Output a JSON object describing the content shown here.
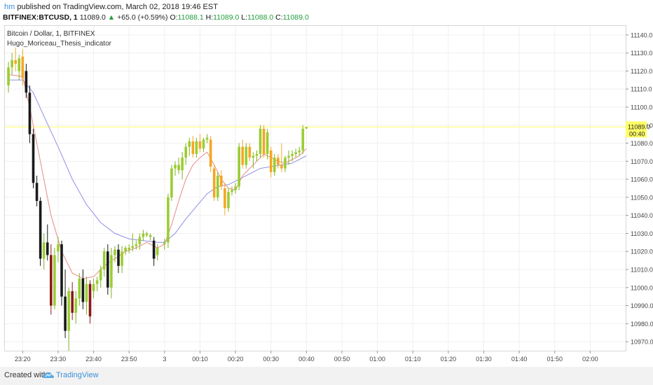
{
  "header": {
    "user": "hm",
    "published_text": "published on TradingView.com, March 02, 2018 19:46 EST",
    "symbol": "BITFINEX:BTCUSD, 1",
    "last": "11089.0",
    "change": "+65.0 (+0.59%)",
    "o_label": "O:",
    "o_value": "11088.1",
    "h_label": "H:",
    "h_value": "11089.0",
    "l_label": "L:",
    "l_value": "11088.0",
    "c_label": "C:",
    "c_value": "11089.0"
  },
  "legend": {
    "series_title": "Bitcoin / Dollar, 1, BITFINEX",
    "indicator": "Hugo_Moriceau_Thesis_indicator"
  },
  "price_label": {
    "value": "11089.0",
    "countdown": "00:40"
  },
  "footer": {
    "created": "Created with",
    "brand": "TradingView"
  },
  "colors": {
    "up": "#9acd32",
    "up_strong": "#66c21f",
    "down": "#1a1a1a",
    "down_red": "#8b1a1a",
    "orange": "#f5a623",
    "ma_fast": "#e88a8a",
    "ma_slow": "#8f8fe8",
    "last_line": "#ffff66"
  },
  "chart_data": {
    "type": "candlestick",
    "title": "Bitcoin / Dollar, 1, BITFINEX",
    "ylim": [
      10965,
      11145
    ],
    "y_ticks": [
      10970,
      10980,
      10990,
      11000,
      11010,
      11020,
      11030,
      11040,
      11050,
      11060,
      11070,
      11080,
      11090,
      11100,
      11110,
      11120,
      11130,
      11140
    ],
    "x_ticks": [
      "23:20",
      "23:30",
      "23:40",
      "23:50",
      "3",
      "00:10",
      "00:20",
      "00:30",
      "00:40",
      "00:50",
      "01:00",
      "01:10",
      "01:20",
      "01:30",
      "01:40",
      "01:50",
      "02:00"
    ],
    "x_range_minutes": [
      -45,
      130
    ],
    "last_price": 11089.0,
    "candles": [
      {
        "t": -44,
        "o": 11112,
        "h": 11125,
        "l": 11108,
        "c": 11122,
        "col": "up"
      },
      {
        "t": -43,
        "o": 11122,
        "h": 11130,
        "l": 11118,
        "c": 11126,
        "col": "up"
      },
      {
        "t": -42,
        "o": 11126,
        "h": 11133,
        "l": 11120,
        "c": 11124,
        "col": "orange"
      },
      {
        "t": -41,
        "o": 11120,
        "h": 11129,
        "l": 11115,
        "c": 11127,
        "col": "up"
      },
      {
        "t": -40,
        "o": 11128,
        "h": 11132,
        "l": 11112,
        "c": 11116,
        "col": "orange"
      },
      {
        "t": -39,
        "o": 11120,
        "h": 11124,
        "l": 11105,
        "c": 11108,
        "col": "down"
      },
      {
        "t": -38,
        "o": 11108,
        "h": 11112,
        "l": 11080,
        "c": 11085,
        "col": "down"
      },
      {
        "t": -37,
        "o": 11085,
        "h": 11088,
        "l": 11055,
        "c": 11058,
        "col": "down"
      },
      {
        "t": -36,
        "o": 11058,
        "h": 11062,
        "l": 11045,
        "c": 11048,
        "col": "down"
      },
      {
        "t": -35,
        "o": 11048,
        "h": 11050,
        "l": 11012,
        "c": 11016,
        "col": "down"
      },
      {
        "t": -34,
        "o": 11016,
        "h": 11030,
        "l": 11010,
        "c": 11025,
        "col": "up"
      },
      {
        "t": -33,
        "o": 11025,
        "h": 11035,
        "l": 11015,
        "c": 11018,
        "col": "down"
      },
      {
        "t": -32,
        "o": 11018,
        "h": 11024,
        "l": 10985,
        "c": 10990,
        "col": "down_red"
      },
      {
        "t": -31,
        "o": 10990,
        "h": 11022,
        "l": 10988,
        "c": 11018,
        "col": "up"
      },
      {
        "t": -30,
        "o": 11020,
        "h": 11028,
        "l": 11014,
        "c": 11024,
        "col": "up"
      },
      {
        "t": -29,
        "o": 11024,
        "h": 11026,
        "l": 10990,
        "c": 10995,
        "col": "down"
      },
      {
        "t": -28,
        "o": 10995,
        "h": 11010,
        "l": 10972,
        "c": 10976,
        "col": "down"
      },
      {
        "t": -27,
        "o": 10976,
        "h": 11000,
        "l": 10965,
        "c": 10998,
        "col": "up"
      },
      {
        "t": -26,
        "o": 10998,
        "h": 11003,
        "l": 10982,
        "c": 10986,
        "col": "down_red"
      },
      {
        "t": -25,
        "o": 10986,
        "h": 10998,
        "l": 10980,
        "c": 10994,
        "col": "up"
      },
      {
        "t": -24,
        "o": 10994,
        "h": 11008,
        "l": 10990,
        "c": 11005,
        "col": "up"
      },
      {
        "t": -23,
        "o": 11005,
        "h": 11010,
        "l": 10988,
        "c": 10992,
        "col": "down"
      },
      {
        "t": -22,
        "o": 10992,
        "h": 11006,
        "l": 10985,
        "c": 11002,
        "col": "up"
      },
      {
        "t": -21,
        "o": 11002,
        "h": 11004,
        "l": 10980,
        "c": 10984,
        "col": "down_red"
      },
      {
        "t": -20,
        "o": 10998,
        "h": 11005,
        "l": 10994,
        "c": 11002,
        "col": "up"
      },
      {
        "t": -19,
        "o": 11002,
        "h": 11006,
        "l": 10998,
        "c": 11004,
        "col": "up"
      },
      {
        "t": -18,
        "o": 11004,
        "h": 11012,
        "l": 11000,
        "c": 11010,
        "col": "up"
      },
      {
        "t": -17,
        "o": 11010,
        "h": 11022,
        "l": 11006,
        "c": 11020,
        "col": "up"
      },
      {
        "t": -16,
        "o": 11020,
        "h": 11024,
        "l": 10996,
        "c": 11000,
        "col": "down"
      },
      {
        "t": -15,
        "o": 11000,
        "h": 11022,
        "l": 10994,
        "c": 11018,
        "col": "up"
      },
      {
        "t": -14,
        "o": 11018,
        "h": 11023,
        "l": 11014,
        "c": 11021,
        "col": "up"
      },
      {
        "t": -13,
        "o": 11021,
        "h": 11024,
        "l": 11008,
        "c": 11012,
        "col": "down"
      },
      {
        "t": -12,
        "o": 11012,
        "h": 11023,
        "l": 11008,
        "c": 11020,
        "col": "up"
      },
      {
        "t": -11,
        "o": 11020,
        "h": 11023,
        "l": 11018,
        "c": 11022,
        "col": "up"
      },
      {
        "t": -10,
        "o": 11021,
        "h": 11024,
        "l": 11019,
        "c": 11022,
        "col": "up"
      },
      {
        "t": -9,
        "o": 11022,
        "h": 11030,
        "l": 11020,
        "c": 11023,
        "col": "up"
      },
      {
        "t": -8,
        "o": 11023,
        "h": 11026,
        "l": 11021,
        "c": 11024,
        "col": "up"
      },
      {
        "t": -7,
        "o": 11024,
        "h": 11030,
        "l": 11021,
        "c": 11028,
        "col": "up"
      },
      {
        "t": -6,
        "o": 11028,
        "h": 11032,
        "l": 11026,
        "c": 11030,
        "col": "up"
      },
      {
        "t": -5,
        "o": 11030,
        "h": 11031,
        "l": 11028,
        "c": 11029,
        "col": "up"
      },
      {
        "t": -4,
        "o": 11029,
        "h": 11030,
        "l": 11026,
        "c": 11028,
        "col": "up"
      },
      {
        "t": -3,
        "o": 11026,
        "h": 11028,
        "l": 11012,
        "c": 11016,
        "col": "down"
      },
      {
        "t": -2,
        "o": 11018,
        "h": 11024,
        "l": 11015,
        "c": 11022,
        "col": "up"
      },
      {
        "t": 0,
        "o": 11024,
        "h": 11027,
        "l": 11021,
        "c": 11025,
        "col": "up"
      },
      {
        "t": 1,
        "o": 11025,
        "h": 11052,
        "l": 11022,
        "c": 11050,
        "col": "up"
      },
      {
        "t": 2,
        "o": 11050,
        "h": 11068,
        "l": 11048,
        "c": 11066,
        "col": "up"
      },
      {
        "t": 3,
        "o": 11066,
        "h": 11070,
        "l": 11062,
        "c": 11068,
        "col": "up"
      },
      {
        "t": 4,
        "o": 11068,
        "h": 11072,
        "l": 11063,
        "c": 11065,
        "col": "up"
      },
      {
        "t": 5,
        "o": 11065,
        "h": 11075,
        "l": 11060,
        "c": 11072,
        "col": "up"
      },
      {
        "t": 6,
        "o": 11072,
        "h": 11080,
        "l": 11068,
        "c": 11078,
        "col": "up"
      },
      {
        "t": 7,
        "o": 11078,
        "h": 11083,
        "l": 11073,
        "c": 11081,
        "col": "up"
      },
      {
        "t": 8,
        "o": 11081,
        "h": 11084,
        "l": 11072,
        "c": 11074,
        "col": "orange"
      },
      {
        "t": 9,
        "o": 11074,
        "h": 11083,
        "l": 11072,
        "c": 11081,
        "col": "up"
      },
      {
        "t": 10,
        "o": 11081,
        "h": 11085,
        "l": 11075,
        "c": 11077,
        "col": "orange"
      },
      {
        "t": 11,
        "o": 11077,
        "h": 11083,
        "l": 11075,
        "c": 11082,
        "col": "up"
      },
      {
        "t": 12,
        "o": 11083,
        "h": 11085,
        "l": 11080,
        "c": 11082,
        "col": "up"
      },
      {
        "t": 13,
        "o": 11082,
        "h": 11084,
        "l": 11064,
        "c": 11067,
        "col": "orange"
      },
      {
        "t": 14,
        "o": 11066,
        "h": 11068,
        "l": 11048,
        "c": 11050,
        "col": "orange"
      },
      {
        "t": 15,
        "o": 11050,
        "h": 11064,
        "l": 11048,
        "c": 11062,
        "col": "up"
      },
      {
        "t": 16,
        "o": 11062,
        "h": 11065,
        "l": 11054,
        "c": 11056,
        "col": "orange"
      },
      {
        "t": 17,
        "o": 11055,
        "h": 11058,
        "l": 11040,
        "c": 11044,
        "col": "orange"
      },
      {
        "t": 18,
        "o": 11044,
        "h": 11055,
        "l": 11042,
        "c": 11053,
        "col": "up"
      },
      {
        "t": 19,
        "o": 11053,
        "h": 11056,
        "l": 11051,
        "c": 11054,
        "col": "up"
      },
      {
        "t": 20,
        "o": 11054,
        "h": 11058,
        "l": 11052,
        "c": 11056,
        "col": "up"
      },
      {
        "t": 21,
        "o": 11056,
        "h": 11080,
        "l": 11054,
        "c": 11078,
        "col": "up"
      },
      {
        "t": 22,
        "o": 11078,
        "h": 11082,
        "l": 11066,
        "c": 11068,
        "col": "orange"
      },
      {
        "t": 23,
        "o": 11068,
        "h": 11080,
        "l": 11066,
        "c": 11078,
        "col": "up"
      },
      {
        "t": 24,
        "o": 11078,
        "h": 11080,
        "l": 11070,
        "c": 11072,
        "col": "orange"
      },
      {
        "t": 25,
        "o": 11072,
        "h": 11075,
        "l": 11066,
        "c": 11073,
        "col": "up"
      },
      {
        "t": 26,
        "o": 11073,
        "h": 11076,
        "l": 11070,
        "c": 11074,
        "col": "up"
      },
      {
        "t": 27,
        "o": 11074,
        "h": 11090,
        "l": 11072,
        "c": 11088,
        "col": "up"
      },
      {
        "t": 28,
        "o": 11088,
        "h": 11090,
        "l": 11072,
        "c": 11074,
        "col": "orange"
      },
      {
        "t": 29,
        "o": 11074,
        "h": 11088,
        "l": 11071,
        "c": 11086,
        "col": "up"
      },
      {
        "t": 30,
        "o": 11076,
        "h": 11078,
        "l": 11061,
        "c": 11064,
        "col": "orange"
      },
      {
        "t": 31,
        "o": 11064,
        "h": 11074,
        "l": 11062,
        "c": 11072,
        "col": "up"
      },
      {
        "t": 32,
        "o": 11072,
        "h": 11074,
        "l": 11066,
        "c": 11068,
        "col": "orange"
      },
      {
        "t": 33,
        "o": 11068,
        "h": 11080,
        "l": 11064,
        "c": 11066,
        "col": "orange"
      },
      {
        "t": 34,
        "o": 11066,
        "h": 11073,
        "l": 11064,
        "c": 11072,
        "col": "up"
      },
      {
        "t": 35,
        "o": 11072,
        "h": 11076,
        "l": 11068,
        "c": 11073,
        "col": "up"
      },
      {
        "t": 36,
        "o": 11073,
        "h": 11076,
        "l": 11070,
        "c": 11074,
        "col": "up"
      },
      {
        "t": 37,
        "o": 11074,
        "h": 11077,
        "l": 11072,
        "c": 11075,
        "col": "up"
      },
      {
        "t": 38,
        "o": 11075,
        "h": 11078,
        "l": 11073,
        "c": 11076,
        "col": "up"
      },
      {
        "t": 39,
        "o": 11076,
        "h": 11090,
        "l": 11074,
        "c": 11088,
        "col": "up"
      },
      {
        "t": 40,
        "o": 11088.1,
        "h": 11089,
        "l": 11088,
        "c": 11089,
        "col": "up"
      }
    ],
    "ma_fast": [
      [
        -44,
        11118
      ],
      [
        -40,
        11117
      ],
      [
        -38,
        11100
      ],
      [
        -35,
        11070
      ],
      [
        -32,
        11040
      ],
      [
        -29,
        11020
      ],
      [
        -26,
        11008
      ],
      [
        -23,
        11005
      ],
      [
        -20,
        11006
      ],
      [
        -17,
        11012
      ],
      [
        -14,
        11016
      ],
      [
        -11,
        11020
      ],
      [
        -8,
        11022
      ],
      [
        -5,
        11025
      ],
      [
        -2,
        11022
      ],
      [
        0,
        11024
      ],
      [
        2,
        11035
      ],
      [
        4,
        11048
      ],
      [
        6,
        11060
      ],
      [
        8,
        11068
      ],
      [
        10,
        11072
      ],
      [
        12,
        11075
      ],
      [
        14,
        11068
      ],
      [
        16,
        11060
      ],
      [
        18,
        11055
      ],
      [
        20,
        11054
      ],
      [
        22,
        11062
      ],
      [
        24,
        11066
      ],
      [
        26,
        11070
      ],
      [
        28,
        11074
      ],
      [
        30,
        11072
      ],
      [
        32,
        11070
      ],
      [
        34,
        11069
      ],
      [
        36,
        11071
      ],
      [
        38,
        11073
      ],
      [
        40,
        11077
      ]
    ],
    "ma_slow": [
      [
        -44,
        11115
      ],
      [
        -40,
        11115
      ],
      [
        -37,
        11108
      ],
      [
        -34,
        11095
      ],
      [
        -30,
        11078
      ],
      [
        -26,
        11060
      ],
      [
        -22,
        11046
      ],
      [
        -18,
        11036
      ],
      [
        -14,
        11030
      ],
      [
        -10,
        11027
      ],
      [
        -6,
        11026
      ],
      [
        -2,
        11025
      ],
      [
        0,
        11025
      ],
      [
        3,
        11030
      ],
      [
        6,
        11038
      ],
      [
        9,
        11045
      ],
      [
        12,
        11052
      ],
      [
        15,
        11056
      ],
      [
        18,
        11057
      ],
      [
        21,
        11060
      ],
      [
        24,
        11063
      ],
      [
        27,
        11066
      ],
      [
        30,
        11067
      ],
      [
        33,
        11068
      ],
      [
        36,
        11069
      ],
      [
        38,
        11071
      ],
      [
        40,
        11073
      ]
    ]
  }
}
